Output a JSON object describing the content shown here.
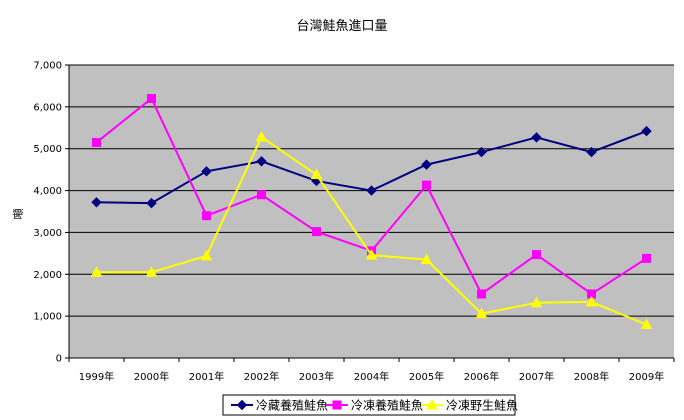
{
  "chart_data": {
    "type": "line",
    "title": "台灣鮭魚進口量",
    "ylabel": "噸",
    "xlabel": "",
    "categories": [
      "1999年",
      "2000年",
      "2001年",
      "2002年",
      "2003年",
      "2004年",
      "2005年",
      "2006年",
      "2007年",
      "2008年",
      "2009年"
    ],
    "ylim": [
      0,
      7000
    ],
    "yticks": [
      "0",
      "1,000",
      "2,000",
      "3,000",
      "4,000",
      "5,000",
      "6,000",
      "7,000"
    ],
    "grid": true,
    "legend_position": "bottom",
    "series": [
      {
        "name": "冷藏養殖鮭魚",
        "color": "#000080",
        "marker": "diamond",
        "values": [
          3720,
          3700,
          4460,
          4700,
          4230,
          4000,
          4620,
          4920,
          5270,
          4920,
          5420
        ]
      },
      {
        "name": "冷凍養殖鮭魚",
        "color": "#ff00ff",
        "marker": "square",
        "values": [
          5150,
          6200,
          3400,
          3900,
          3020,
          2560,
          4130,
          1530,
          2470,
          1530,
          2380
        ]
      },
      {
        "name": "冷凍野生鮭魚",
        "color": "#ffff00",
        "marker": "triangle",
        "values": [
          2050,
          2050,
          2440,
          5280,
          4380,
          2460,
          2350,
          1060,
          1320,
          1340,
          800
        ]
      }
    ]
  }
}
